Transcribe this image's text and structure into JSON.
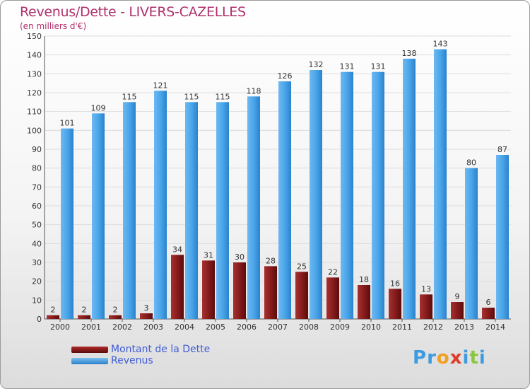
{
  "title": "Revenus/Dette - LIVERS-CAZELLES",
  "subtitle": "(en milliers d'€)",
  "colors": {
    "title": "#b0306e",
    "dette": "#7a1414",
    "revenus": "#3f9be0",
    "value_text": "#333333",
    "legend_text": "#3f5bd6"
  },
  "chart_data": {
    "type": "bar",
    "title": "Revenus/Dette - LIVERS-CAZELLES",
    "subtitle": "(en milliers d'€)",
    "xlabel": "",
    "ylabel": "",
    "ylim": [
      0,
      150
    ],
    "yticks": [
      0,
      10,
      20,
      30,
      40,
      50,
      60,
      70,
      80,
      90,
      100,
      110,
      120,
      130,
      140,
      150
    ],
    "grid": true,
    "legend_position": "bottom-left",
    "categories": [
      "2000",
      "2001",
      "2002",
      "2003",
      "2004",
      "2005",
      "2006",
      "2007",
      "2008",
      "2009",
      "2010",
      "2011",
      "2012",
      "2013",
      "2014"
    ],
    "series": [
      {
        "name": "Montant de la Dette",
        "values": [
          2,
          2,
          2,
          3,
          34,
          31,
          30,
          28,
          25,
          22,
          18,
          16,
          13,
          9,
          6
        ]
      },
      {
        "name": "Revenus",
        "values": [
          101,
          109,
          115,
          121,
          115,
          115,
          118,
          126,
          132,
          131,
          131,
          138,
          143,
          80,
          87
        ]
      }
    ]
  },
  "legend": [
    {
      "label": "Montant de la Dette"
    },
    {
      "label": "Revenus"
    }
  ],
  "logo": {
    "letters": [
      "P",
      "r",
      "o",
      "x",
      "i",
      "t",
      "i"
    ],
    "letter_colors": [
      "#3f9be0",
      "#3f9be0",
      "#f0a020",
      "#e03a2a",
      "#3f9be0",
      "#8cc63f",
      "#3f9be0"
    ]
  }
}
